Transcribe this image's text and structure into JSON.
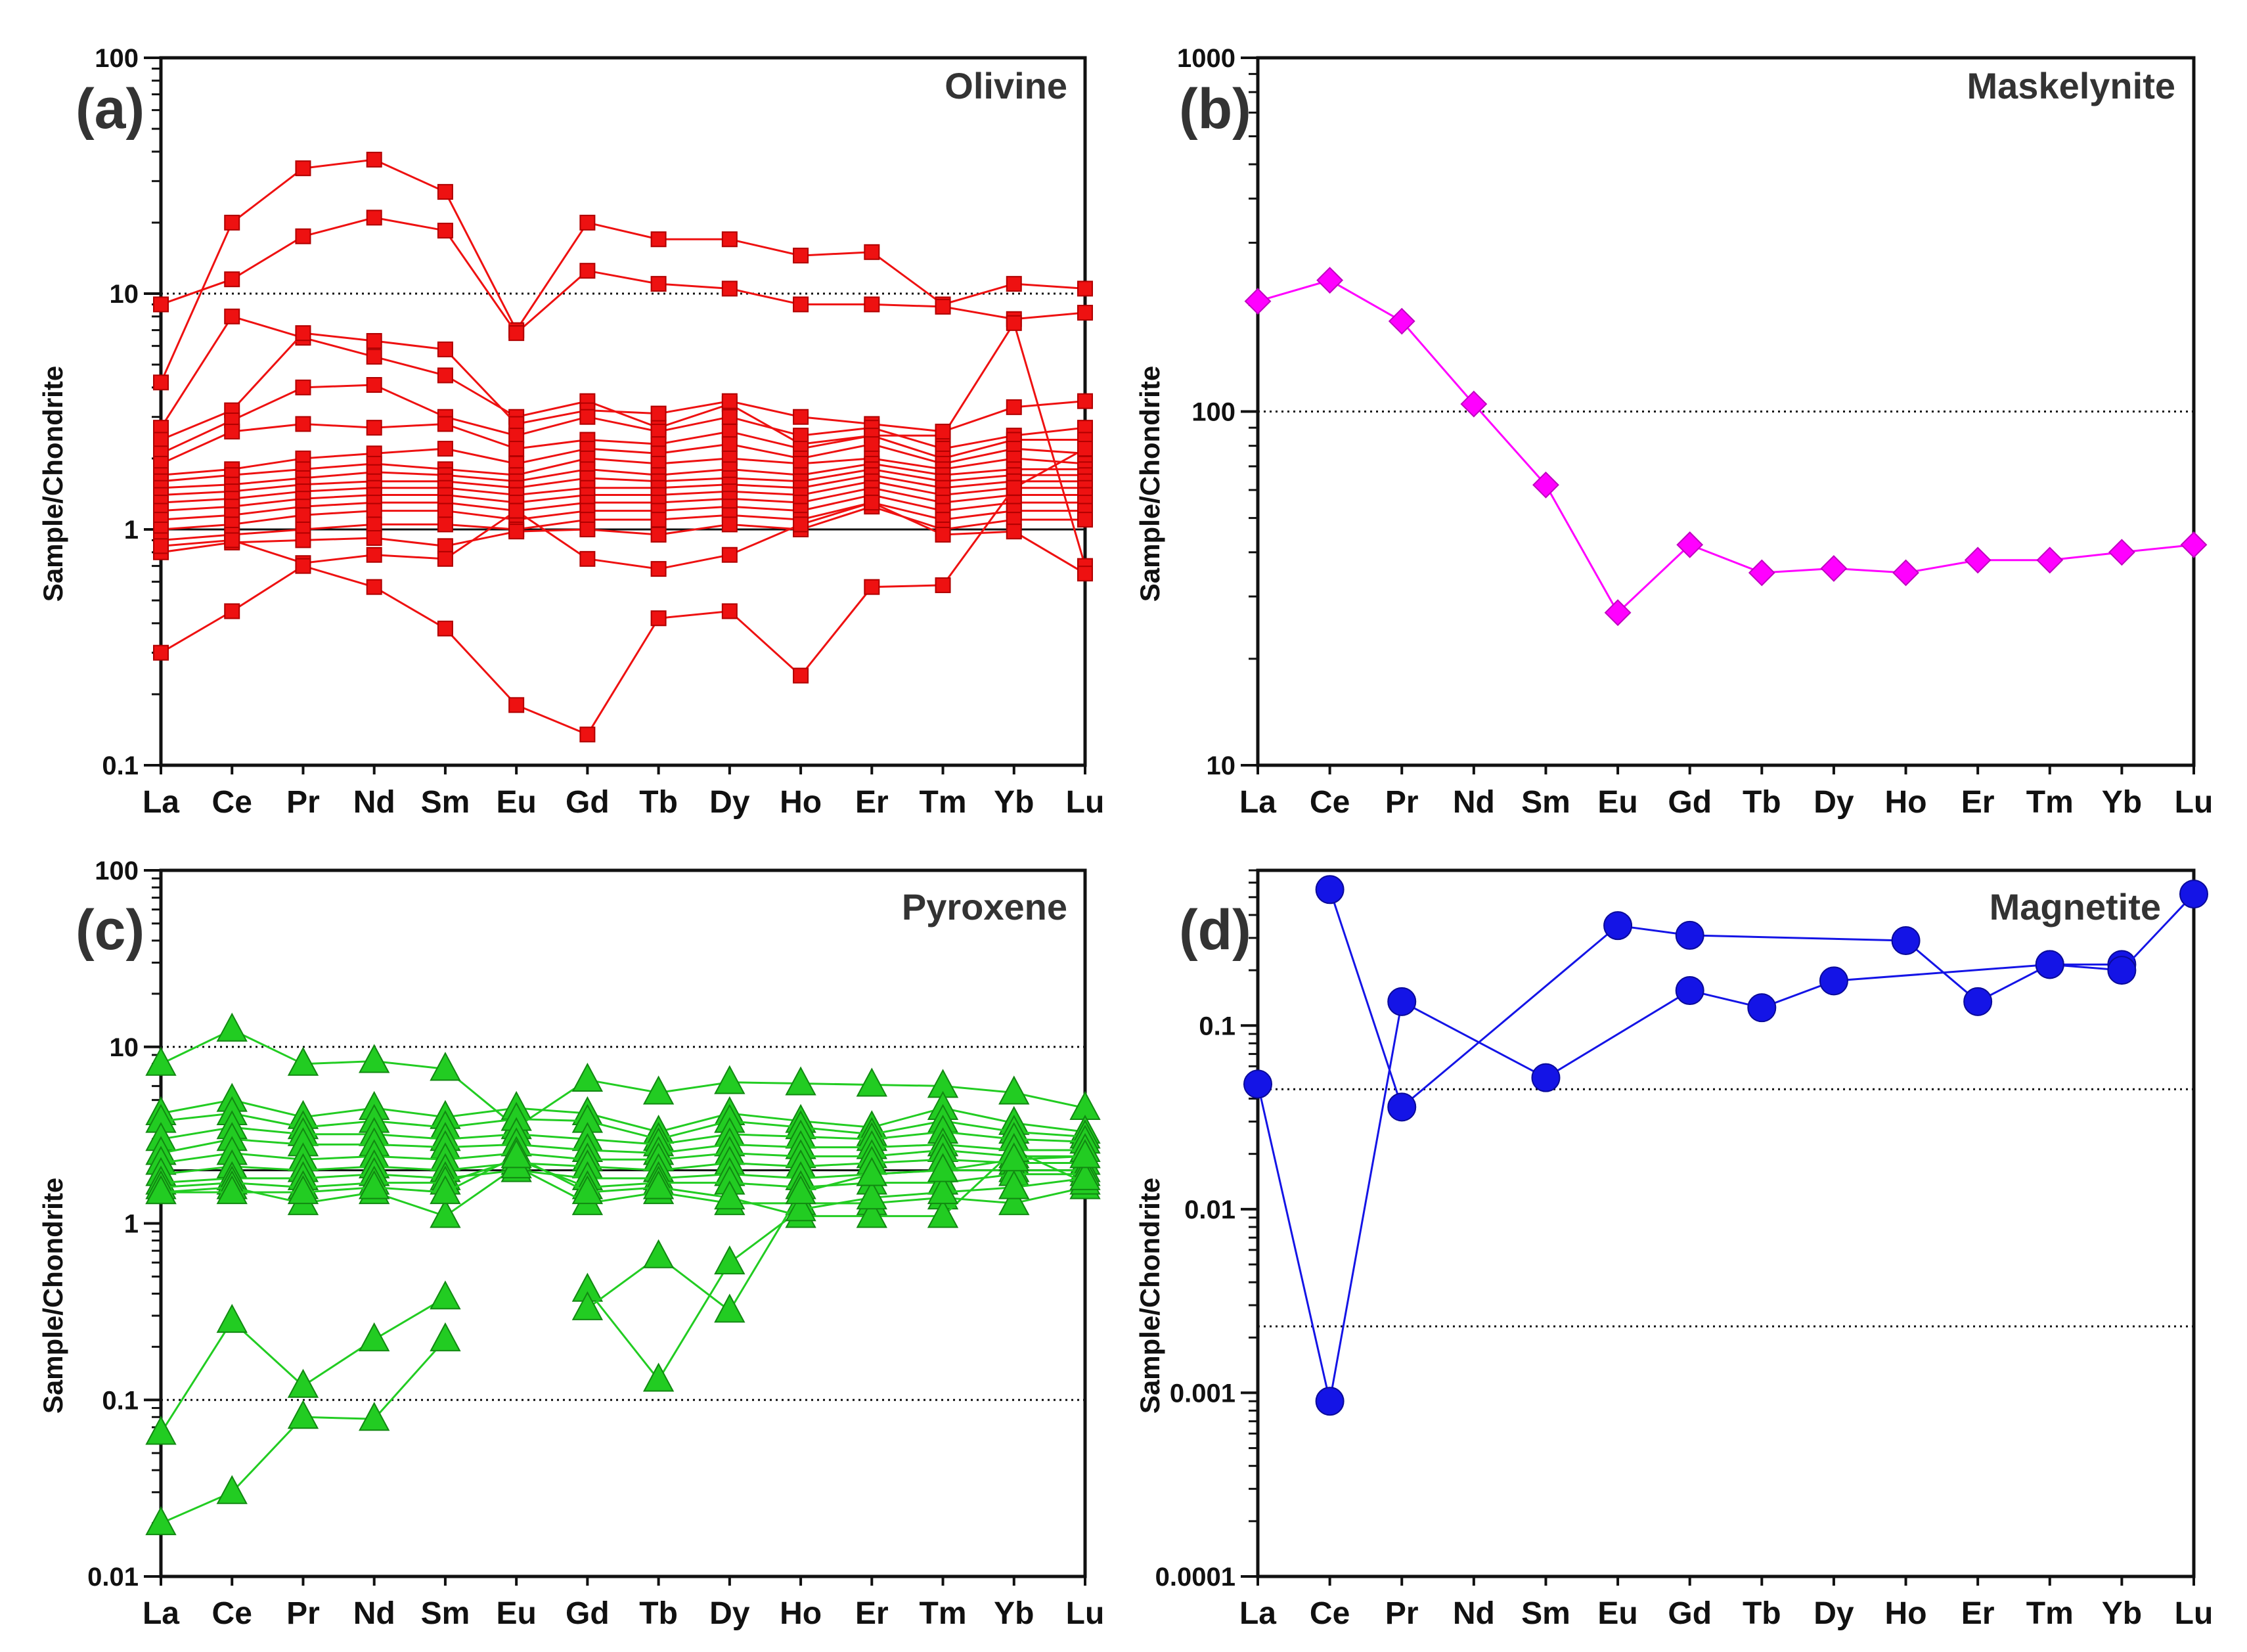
{
  "categories": [
    "La",
    "Ce",
    "Pr",
    "Nd",
    "Sm",
    "Eu",
    "Gd",
    "Tb",
    "Dy",
    "Ho",
    "Er",
    "Tm",
    "Yb",
    "Lu"
  ],
  "chart_data": [
    {
      "panel": "(a)",
      "title": "Olivine",
      "type": "line",
      "ylabel": "Sample/Chondrite",
      "yscale": "log",
      "ylim": [
        0.1,
        100
      ],
      "yticks": [
        "0.1",
        "1",
        "10",
        "100"
      ],
      "ref_lines": [
        {
          "y": 10,
          "style": "dotted"
        },
        {
          "y": 1,
          "style": "solid"
        }
      ],
      "color": "#ee1111",
      "marker": "square",
      "series": [
        {
          "values": [
            4.2,
            20,
            34,
            37,
            27,
            7,
            20,
            17,
            17,
            14.5,
            15,
            9,
            11,
            10.5
          ]
        },
        {
          "values": [
            9,
            11.5,
            17.5,
            21,
            18.5,
            6.8,
            12.5,
            11,
            10.5,
            9,
            9,
            8.8,
            7.8,
            8.3
          ]
        },
        {
          "values": [
            2.7,
            8,
            6.5,
            5.4,
            4.5,
            3,
            3.5,
            2.7,
            3.4,
            2.3,
            2.5,
            2.5,
            7.5,
            0.7
          ]
        },
        {
          "values": [
            2.4,
            3.2,
            6.8,
            6.3,
            5.8,
            2.8,
            3.2,
            3.1,
            3.5,
            3,
            2.8,
            2.6,
            3.3,
            3.5
          ]
        },
        {
          "values": [
            2.1,
            2.9,
            4,
            4.1,
            3,
            2.5,
            3,
            2.6,
            3,
            2.5,
            2.7,
            2.2,
            2.5,
            2.7
          ]
        },
        {
          "values": [
            1.9,
            2.6,
            2.8,
            2.7,
            2.8,
            2.2,
            2.4,
            2.3,
            2.6,
            2.2,
            2.5,
            2,
            2.4,
            2.4
          ]
        },
        {
          "values": [
            1.7,
            1.8,
            2,
            2.1,
            2.2,
            1.9,
            2.2,
            2.1,
            2.3,
            2,
            2.3,
            1.9,
            2.2,
            2.1
          ]
        },
        {
          "values": [
            1.6,
            1.7,
            1.8,
            1.9,
            1.8,
            1.7,
            2,
            1.9,
            2,
            1.9,
            2,
            1.8,
            2,
            1.9
          ]
        },
        {
          "values": [
            1.5,
            1.55,
            1.65,
            1.75,
            1.7,
            1.6,
            1.8,
            1.7,
            1.8,
            1.7,
            1.9,
            1.7,
            1.8,
            1.8
          ]
        },
        {
          "values": [
            1.4,
            1.45,
            1.55,
            1.6,
            1.6,
            1.5,
            1.65,
            1.6,
            1.65,
            1.6,
            1.8,
            1.6,
            1.7,
            1.7
          ]
        },
        {
          "values": [
            1.3,
            1.35,
            1.45,
            1.5,
            1.5,
            1.4,
            1.5,
            1.5,
            1.55,
            1.5,
            1.7,
            1.5,
            1.6,
            1.6
          ]
        },
        {
          "values": [
            1.2,
            1.25,
            1.35,
            1.4,
            1.4,
            1.3,
            1.4,
            1.4,
            1.45,
            1.4,
            1.6,
            1.4,
            1.5,
            1.5
          ]
        },
        {
          "values": [
            1.1,
            1.15,
            1.25,
            1.3,
            1.3,
            1.2,
            1.3,
            1.3,
            1.35,
            1.3,
            1.5,
            1.3,
            1.4,
            1.4
          ]
        },
        {
          "values": [
            1,
            1.05,
            1.15,
            1.2,
            1.2,
            1.1,
            1.2,
            1.2,
            1.25,
            1.2,
            1.4,
            1.2,
            1.3,
            1.3
          ]
        },
        {
          "values": [
            0.9,
            0.95,
            1,
            1.05,
            1.05,
            1,
            1.1,
            1.1,
            1.15,
            1.1,
            1.3,
            1.1,
            1.2,
            1.2
          ]
        },
        {
          "values": [
            0.8,
            0.88,
            0.9,
            0.92,
            0.85,
            0.98,
            1,
            0.95,
            1.05,
            1,
            1.25,
            1,
            1.1,
            1.1
          ]
        },
        {
          "values": [
            0.85,
            0.9,
            0.72,
            0.78,
            0.75,
            1.2,
            0.75,
            0.68,
            0.78,
            1.05,
            1.3,
            0.95,
            0.98,
            0.65
          ]
        },
        {
          "values": [
            0.3,
            0.45,
            0.7,
            0.57,
            0.38,
            0.18,
            0.135,
            0.42,
            0.45,
            0.24,
            0.57,
            0.58,
            1.5,
            2.2
          ]
        }
      ]
    },
    {
      "panel": "(b)",
      "title": "Maskelynite",
      "type": "line",
      "ylabel": "Sample/Chondrite",
      "yscale": "log",
      "ylim": [
        10,
        1000
      ],
      "yticks": [
        "10",
        "100",
        "1000"
      ],
      "ref_lines": [
        {
          "y": 100,
          "style": "dotted"
        }
      ],
      "color": "#ff00ff",
      "marker": "diamond",
      "series": [
        {
          "values": [
            205,
            235,
            180,
            105,
            62,
            27,
            42,
            35,
            36,
            35,
            38,
            38,
            40,
            42
          ]
        }
      ]
    },
    {
      "panel": "(c)",
      "title": "Pyroxene",
      "type": "line",
      "ylabel": "Sample/Chondrite",
      "yscale": "log",
      "ylim": [
        0.01,
        100
      ],
      "yticks": [
        "0.01",
        "0.1",
        "1",
        "10",
        "100"
      ],
      "ref_lines": [
        {
          "y": 10,
          "style": "dotted"
        },
        {
          "y": 2,
          "style": "solid"
        },
        {
          "y": 0.1,
          "style": "dotted"
        }
      ],
      "color": "#22cc22",
      "marker": "triangle",
      "series": [
        {
          "values": [
            8,
            12.5,
            8,
            8.3,
            7.5,
            3.5,
            6.5,
            5.5,
            6.3,
            6.2,
            6.1,
            6,
            5.5,
            4.5
          ]
        },
        {
          "values": [
            4.2,
            5,
            4,
            4.5,
            4,
            4.5,
            4.2,
            3.3,
            4.2,
            3.8,
            3.5,
            4.5,
            3.7,
            3.3
          ]
        },
        {
          "values": [
            3.8,
            4.2,
            3.5,
            3.8,
            3.5,
            3.9,
            3.8,
            3,
            3.8,
            3.5,
            3.2,
            3.8,
            3.3,
            3.1
          ]
        },
        {
          "values": [
            3,
            3.5,
            3.2,
            3.2,
            3,
            3.2,
            3,
            2.8,
            3.2,
            3.1,
            3,
            3.3,
            3,
            2.9
          ]
        },
        {
          "values": [
            2.5,
            3,
            2.8,
            2.8,
            2.7,
            2.8,
            2.6,
            2.5,
            2.8,
            2.7,
            2.7,
            2.8,
            2.6,
            2.6
          ]
        },
        {
          "values": [
            2.2,
            2.5,
            2.3,
            2.4,
            2.3,
            2.5,
            2.3,
            2.3,
            2.5,
            2.4,
            2.4,
            2.6,
            2.4,
            2.4
          ]
        },
        {
          "values": [
            1.9,
            2.1,
            2,
            2.1,
            2,
            2.2,
            2.1,
            2,
            2.2,
            2.1,
            2.2,
            2.3,
            2.2,
            2.2
          ]
        },
        {
          "values": [
            1.7,
            1.8,
            1.8,
            1.9,
            1.8,
            2,
            1.8,
            1.8,
            1.9,
            1.8,
            1.9,
            2,
            2,
            2
          ]
        },
        {
          "values": [
            1.6,
            1.7,
            1.6,
            1.7,
            1.7,
            2.3,
            1.6,
            1.7,
            1.7,
            1.6,
            1.7,
            1.7,
            1.9,
            1.9
          ]
        },
        {
          "values": [
            1.5,
            1.6,
            1.3,
            1.5,
            1.1,
            2.1,
            1.3,
            1.5,
            1.3,
            1.3,
            1.3,
            1.4,
            1.3,
            1.6
          ]
        },
        {
          "values": [
            1.5,
            1.5,
            1.5,
            1.6,
            1.5,
            2.4,
            1.5,
            1.6,
            1.4,
            1.1,
            1.1,
            1.1,
            2.6,
            1.7
          ]
        },
        {
          "values": [
            0.065,
            0.28,
            0.12,
            0.22,
            0.38,
            null,
            0.42,
            0.13,
            0.6,
            1.2,
            1.4,
            1.5,
            1.6,
            1.8
          ]
        },
        {
          "values": [
            0.02,
            0.03,
            0.08,
            0.078,
            0.22,
            null,
            0.33,
            0.65,
            0.32,
            1.5,
            1.9,
            2,
            2.3,
            2.4
          ]
        }
      ]
    },
    {
      "panel": "(d)",
      "title": "Magnetite",
      "type": "line",
      "ylabel": "Sample/Chondrite",
      "yscale": "log",
      "ylim": [
        0.0001,
        0.7
      ],
      "yticks": [
        "0.0001",
        "0.001",
        "0.01",
        "0.1"
      ],
      "ref_lines": [
        {
          "y": 0.045,
          "style": "dotted"
        },
        {
          "y": 0.0023,
          "style": "dotted"
        }
      ],
      "color": "#1414e6",
      "marker": "circle",
      "series": [
        {
          "values": [
            0.048,
            0.0009,
            0.135,
            null,
            null,
            0.35,
            null,
            null,
            null,
            0.29,
            null,
            null,
            0.23,
            0.52
          ]
        },
        {
          "values": [
            null,
            0.55,
            0.036,
            null,
            0.052,
            null,
            0.155,
            0.125,
            0.175,
            null,
            null,
            null,
            0.2,
            null
          ]
        },
        {
          "values": [
            null,
            null,
            null,
            null,
            null,
            null,
            null,
            null,
            null,
            null,
            null,
            null,
            null,
            null
          ]
        }
      ],
      "connections": [
        {
          "points": [
            [
              "La",
              0.048
            ],
            [
              "Ce",
              0.0009
            ],
            [
              "Pr",
              0.135
            ],
            [
              "Sm",
              0.052
            ],
            [
              "Gd",
              0.155
            ],
            [
              "Tb",
              0.125
            ],
            [
              "Dy",
              0.175
            ],
            [
              "Tm",
              0.215
            ],
            [
              "Yb",
              0.215
            ]
          ]
        },
        {
          "points": [
            [
              "Ce",
              0.55
            ],
            [
              "Pr",
              0.036
            ],
            [
              "Eu",
              0.35
            ],
            [
              "Gd",
              0.31
            ],
            [
              "Ho",
              0.29
            ],
            [
              "Er",
              0.135
            ],
            [
              "Tm",
              0.215
            ],
            [
              "Yb",
              0.2
            ],
            [
              "Lu",
              0.52
            ]
          ]
        }
      ]
    }
  ]
}
